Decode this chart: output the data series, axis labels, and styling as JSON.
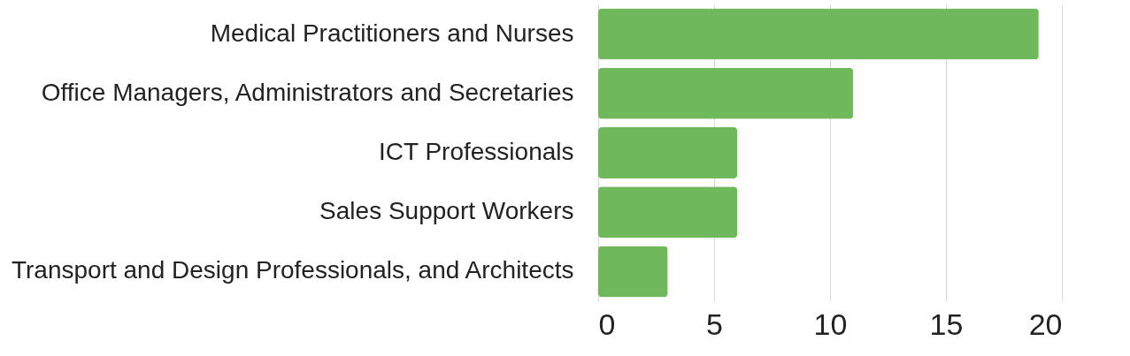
{
  "chart_data": {
    "type": "bar",
    "orientation": "horizontal",
    "categories": [
      "Medical Practitioners and Nurses",
      "Office Managers, Administrators and Secretaries",
      "ICT Professionals",
      "Sales Support Workers",
      "Transport and Design Professionals, and Architects"
    ],
    "values": [
      19,
      11,
      6,
      6,
      3
    ],
    "color": "#70b85c",
    "xlim": [
      0,
      20
    ],
    "xticks": [
      0,
      5,
      10,
      15,
      20
    ],
    "grid": "x"
  }
}
